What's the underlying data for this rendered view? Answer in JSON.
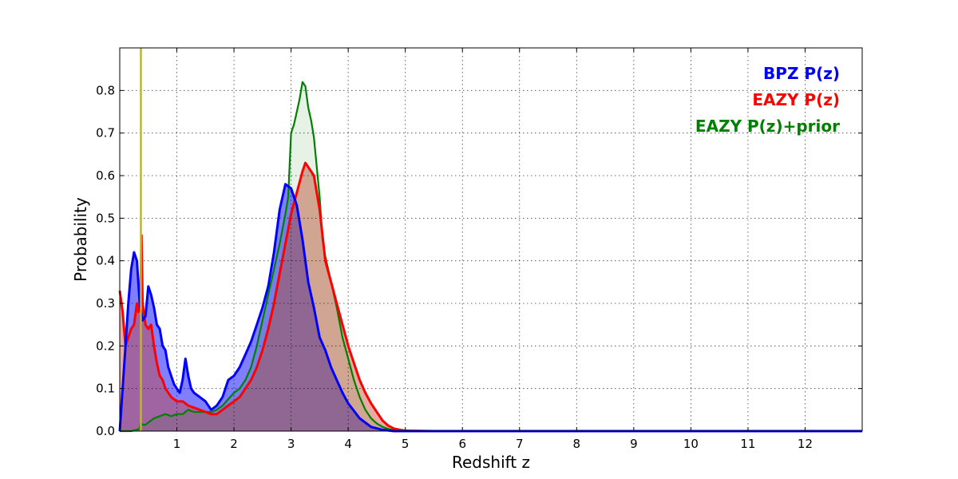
{
  "chart_data": {
    "type": "area",
    "title": "",
    "xlabel": "Redshift z",
    "ylabel": "Probability",
    "xlim": [
      0,
      13
    ],
    "ylim": [
      0,
      0.9
    ],
    "x_ticks": [
      1,
      2,
      3,
      4,
      5,
      6,
      7,
      8,
      9,
      10,
      11,
      12
    ],
    "y_ticks": [
      0.0,
      0.1,
      0.2,
      0.3,
      0.4,
      0.5,
      0.6,
      0.7,
      0.8
    ],
    "x_tick_labels": [
      "1",
      "2",
      "3",
      "4",
      "5",
      "6",
      "7",
      "8",
      "9",
      "10",
      "11",
      "12"
    ],
    "y_tick_labels": [
      "0.0",
      "0.1",
      "0.2",
      "0.3",
      "0.4",
      "0.5",
      "0.6",
      "0.7",
      "0.8"
    ],
    "grid": true,
    "legend_position": "top-right",
    "vertical_line": {
      "x": 0.37,
      "color": "#bfbf00"
    },
    "series": [
      {
        "name": "BPZ P(z)",
        "color": "#0000ff",
        "fill_color": "#0000ff",
        "fill_opacity": 0.5,
        "line_width": 3,
        "x": [
          0,
          0.05,
          0.1,
          0.15,
          0.2,
          0.25,
          0.3,
          0.35,
          0.4,
          0.45,
          0.5,
          0.55,
          0.6,
          0.65,
          0.7,
          0.75,
          0.8,
          0.85,
          0.9,
          0.95,
          1.0,
          1.05,
          1.1,
          1.15,
          1.2,
          1.25,
          1.3,
          1.4,
          1.5,
          1.6,
          1.7,
          1.8,
          1.9,
          2.0,
          2.1,
          2.2,
          2.3,
          2.4,
          2.5,
          2.6,
          2.7,
          2.8,
          2.9,
          3.0,
          3.1,
          3.2,
          3.3,
          3.4,
          3.5,
          3.6,
          3.7,
          3.8,
          3.9,
          4.0,
          4.2,
          4.4,
          4.6,
          4.8,
          5.0,
          5.5,
          13
        ],
        "y": [
          0.0,
          0.1,
          0.2,
          0.3,
          0.38,
          0.42,
          0.4,
          0.3,
          0.26,
          0.27,
          0.34,
          0.32,
          0.29,
          0.25,
          0.24,
          0.2,
          0.19,
          0.15,
          0.13,
          0.11,
          0.1,
          0.09,
          0.12,
          0.17,
          0.13,
          0.1,
          0.09,
          0.08,
          0.07,
          0.05,
          0.06,
          0.08,
          0.12,
          0.13,
          0.15,
          0.18,
          0.21,
          0.25,
          0.29,
          0.34,
          0.42,
          0.52,
          0.58,
          0.57,
          0.53,
          0.45,
          0.35,
          0.29,
          0.22,
          0.19,
          0.15,
          0.12,
          0.09,
          0.065,
          0.03,
          0.01,
          0.003,
          0.0,
          0.0,
          0.0,
          0.0
        ]
      },
      {
        "name": "EAZY P(z)",
        "color": "#ff0000",
        "fill_color": "#cc4433",
        "fill_opacity": 0.45,
        "line_width": 3,
        "x": [
          0,
          0.05,
          0.1,
          0.15,
          0.2,
          0.25,
          0.3,
          0.33,
          0.36,
          0.38,
          0.4,
          0.42,
          0.45,
          0.5,
          0.55,
          0.6,
          0.65,
          0.7,
          0.75,
          0.8,
          0.9,
          1.0,
          1.1,
          1.2,
          1.3,
          1.4,
          1.5,
          1.6,
          1.7,
          1.8,
          1.9,
          2.0,
          2.1,
          2.2,
          2.3,
          2.4,
          2.5,
          2.6,
          2.7,
          2.8,
          2.9,
          3.0,
          3.1,
          3.2,
          3.25,
          3.3,
          3.35,
          3.4,
          3.5,
          3.6,
          3.7,
          3.8,
          3.9,
          4.0,
          4.1,
          4.2,
          4.3,
          4.4,
          4.5,
          4.6,
          4.7,
          4.8,
          4.9,
          5.0,
          5.5,
          13
        ],
        "y": [
          0.33,
          0.28,
          0.2,
          0.22,
          0.24,
          0.25,
          0.3,
          0.28,
          0.3,
          0.46,
          0.3,
          0.28,
          0.25,
          0.24,
          0.25,
          0.2,
          0.16,
          0.13,
          0.12,
          0.1,
          0.08,
          0.07,
          0.07,
          0.06,
          0.055,
          0.05,
          0.045,
          0.04,
          0.04,
          0.05,
          0.06,
          0.07,
          0.08,
          0.1,
          0.12,
          0.15,
          0.19,
          0.24,
          0.3,
          0.37,
          0.44,
          0.51,
          0.56,
          0.61,
          0.63,
          0.62,
          0.61,
          0.6,
          0.52,
          0.4,
          0.35,
          0.3,
          0.25,
          0.2,
          0.16,
          0.12,
          0.09,
          0.065,
          0.045,
          0.025,
          0.013,
          0.006,
          0.003,
          0.001,
          0.0,
          0.0
        ]
      },
      {
        "name": "EAZY P(z)+prior",
        "color": "#008000",
        "fill_color": "#008000",
        "fill_opacity": 0.1,
        "line_width": 2.2,
        "x": [
          0,
          0.2,
          0.35,
          0.37,
          0.4,
          0.45,
          0.5,
          0.6,
          0.7,
          0.8,
          0.9,
          1.0,
          1.1,
          1.2,
          1.3,
          1.4,
          1.5,
          1.6,
          1.7,
          1.8,
          1.9,
          2.0,
          2.1,
          2.2,
          2.3,
          2.4,
          2.5,
          2.6,
          2.7,
          2.8,
          2.9,
          2.95,
          3.0,
          3.05,
          3.1,
          3.15,
          3.2,
          3.25,
          3.3,
          3.35,
          3.4,
          3.5,
          3.55,
          3.6,
          3.7,
          3.8,
          3.9,
          4.0,
          4.1,
          4.2,
          4.3,
          4.4,
          4.5,
          4.6,
          4.7,
          4.8,
          5.0,
          5.5,
          13
        ],
        "y": [
          0.0,
          0.0,
          0.005,
          0.02,
          0.015,
          0.015,
          0.02,
          0.03,
          0.035,
          0.04,
          0.035,
          0.04,
          0.04,
          0.05,
          0.045,
          0.045,
          0.045,
          0.045,
          0.05,
          0.06,
          0.075,
          0.09,
          0.1,
          0.12,
          0.15,
          0.2,
          0.26,
          0.32,
          0.38,
          0.44,
          0.51,
          0.55,
          0.7,
          0.72,
          0.75,
          0.78,
          0.82,
          0.81,
          0.76,
          0.73,
          0.69,
          0.55,
          0.45,
          0.41,
          0.35,
          0.29,
          0.22,
          0.17,
          0.12,
          0.08,
          0.05,
          0.03,
          0.018,
          0.01,
          0.005,
          0.002,
          0.0,
          0.0,
          0.0
        ]
      }
    ]
  }
}
